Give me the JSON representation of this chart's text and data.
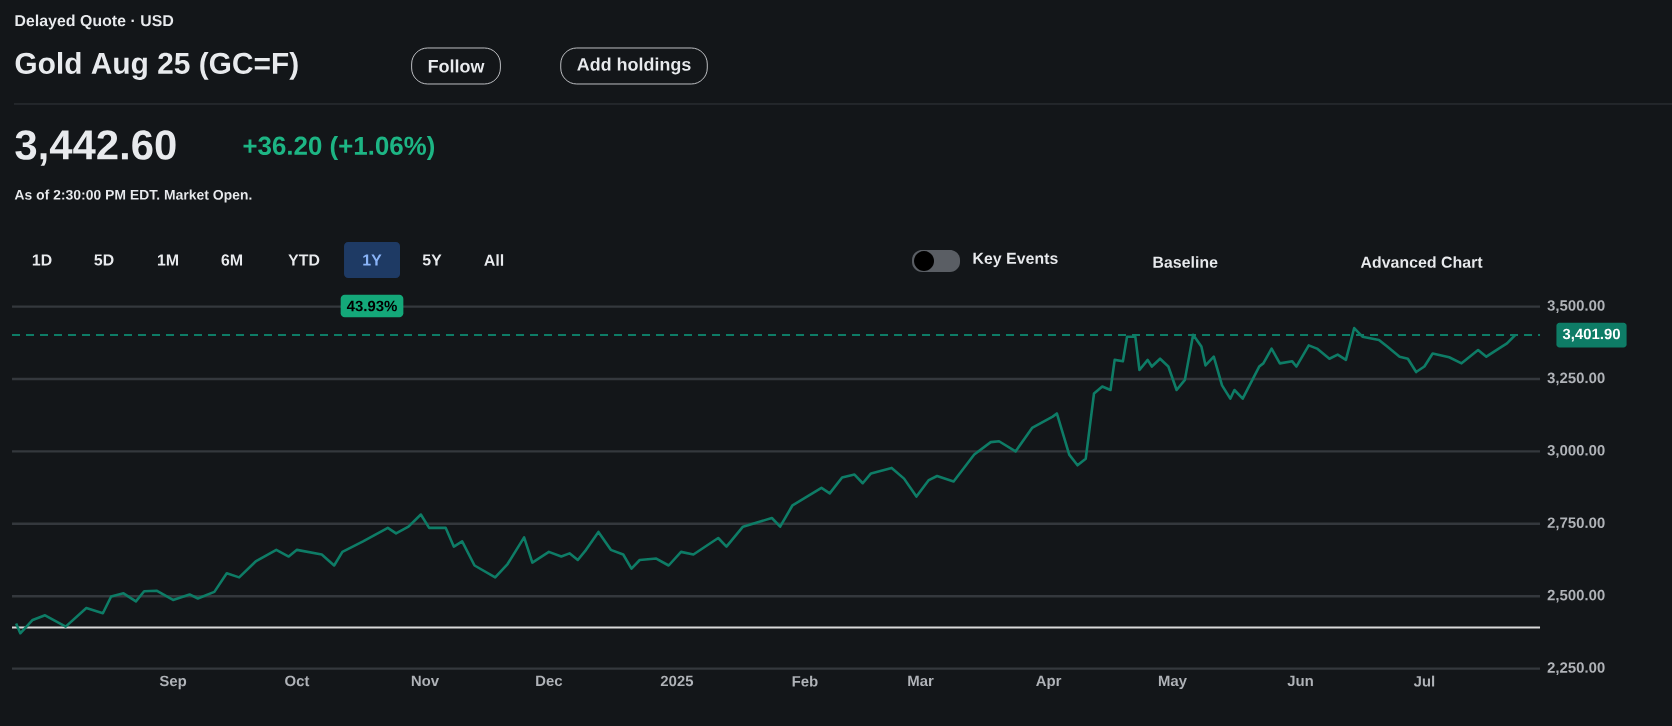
{
  "chart_data": {
    "type": "line",
    "title": "Gold Aug 25 (GC=F)",
    "subtitle": "As of 2:30:00 PM EDT. Market Open.",
    "annotations": [
      "Delayed Quote · USD",
      "Follow",
      "Add holdings",
      "3,442.60",
      "+36.20 (+1.06%)",
      "1D",
      "5D",
      "1M",
      "6M",
      "YTD",
      "1Y",
      "5Y",
      "All",
      "43.93%",
      "Key Events",
      "Baseline",
      "Advanced Chart"
    ],
    "x": [
      "2024-07-25",
      "2024-07-26",
      "2024-07-29",
      "2024-08-01",
      "2024-08-06",
      "2024-08-11",
      "2024-08-15",
      "2024-08-17",
      "2024-08-20",
      "2024-08-23",
      "2024-08-25",
      "2024-08-28",
      "2024-09-01",
      "2024-09-05",
      "2024-09-07",
      "2024-09-11",
      "2024-09-14",
      "2024-09-17",
      "2024-09-21",
      "2024-09-26",
      "2024-09-29",
      "2024-10-01",
      "2024-10-07",
      "2024-10-10",
      "2024-10-12",
      "2024-10-17",
      "2024-10-23",
      "2024-10-25",
      "2024-10-28",
      "2024-10-31",
      "2024-11-02",
      "2024-11-06",
      "2024-11-08",
      "2024-11-10",
      "2024-11-13",
      "2024-11-18",
      "2024-11-21",
      "2024-11-25",
      "2024-11-27",
      "2024-12-01",
      "2024-12-04",
      "2024-12-06",
      "2024-12-08",
      "2024-12-10",
      "2024-12-13",
      "2024-12-16",
      "2024-12-19",
      "2024-12-21",
      "2024-12-23",
      "2024-12-27",
      "2024-12-30",
      "2025-01-02",
      "2025-01-05",
      "2025-01-11",
      "2025-01-13",
      "2025-01-17",
      "2025-01-24",
      "2025-01-26",
      "2025-01-29",
      "2025-02-05",
      "2025-02-07",
      "2025-02-10",
      "2025-02-13",
      "2025-02-15",
      "2025-02-17",
      "2025-02-22",
      "2025-02-25",
      "2025-02-28",
      "2025-03-03",
      "2025-03-05",
      "2025-03-09",
      "2025-03-14",
      "2025-03-18",
      "2025-03-20",
      "2025-03-24",
      "2025-03-28",
      "2025-04-02",
      "2025-04-03",
      "2025-04-06",
      "2025-04-08",
      "2025-04-10",
      "2025-04-12",
      "2025-04-14",
      "2025-04-16",
      "2025-04-17",
      "2025-04-19",
      "2025-04-20",
      "2025-04-22",
      "2025-04-23",
      "2025-04-25",
      "2025-04-26",
      "2025-04-28",
      "2025-04-30",
      "2025-05-02",
      "2025-05-04",
      "2025-05-06",
      "2025-05-08",
      "2025-05-09",
      "2025-05-11",
      "2025-05-13",
      "2025-05-15",
      "2025-05-16",
      "2025-05-18",
      "2025-05-22",
      "2025-05-23",
      "2025-05-25",
      "2025-05-27",
      "2025-05-30",
      "2025-05-31",
      "2025-06-03",
      "2025-06-05",
      "2025-06-08",
      "2025-06-10",
      "2025-06-12",
      "2025-06-14",
      "2025-06-16",
      "2025-06-20",
      "2025-06-22",
      "2025-06-25",
      "2025-06-27",
      "2025-06-29",
      "2025-07-01",
      "2025-07-03",
      "2025-07-07",
      "2025-07-10",
      "2025-07-14",
      "2025-07-16",
      "2025-07-19",
      "2025-07-21",
      "2025-07-23"
    ],
    "series": [
      {
        "color": "#0e7c66",
        "values": [
          2406,
          2372,
          2418,
          2434,
          2395,
          2459,
          2441,
          2499,
          2510,
          2482,
          2517,
          2519,
          2487,
          2506,
          2492,
          2515,
          2579,
          2565,
          2620,
          2660,
          2637,
          2660,
          2644,
          2606,
          2653,
          2689,
          2736,
          2717,
          2740,
          2782,
          2736,
          2736,
          2671,
          2689,
          2606,
          2565,
          2611,
          2703,
          2616,
          2653,
          2637,
          2648,
          2625,
          2660,
          2722,
          2660,
          2644,
          2595,
          2625,
          2630,
          2606,
          2653,
          2644,
          2701,
          2671,
          2740,
          2770,
          2740,
          2814,
          2874,
          2855,
          2910,
          2920,
          2890,
          2924,
          2943,
          2906,
          2844,
          2901,
          2915,
          2896,
          2989,
          3032,
          3035,
          3000,
          3081,
          3120,
          3131,
          2989,
          2952,
          2975,
          3200,
          3224,
          3212,
          3316,
          3311,
          3396,
          3396,
          3281,
          3316,
          3293,
          3320,
          3293,
          3212,
          3247,
          3403,
          3362,
          3297,
          3327,
          3228,
          3182,
          3212,
          3182,
          3293,
          3304,
          3355,
          3304,
          3311,
          3293,
          3366,
          3355,
          3320,
          3334,
          3316,
          3426,
          3396,
          3385,
          3362,
          3327,
          3320,
          3274,
          3293,
          3338,
          3325,
          3304,
          3350,
          3327,
          3355,
          3373,
          3402
        ]
      }
    ],
    "xlim": [
      "2024-07-24",
      "2025-07-29"
    ],
    "xticks": [
      {
        "value": "2024-09-01",
        "label": "Sep"
      },
      {
        "value": "2024-10-01",
        "label": "Oct"
      },
      {
        "value": "2024-11-01",
        "label": "Nov"
      },
      {
        "value": "2024-12-01",
        "label": "Dec"
      },
      {
        "value": "2025-01-01",
        "label": "2025"
      },
      {
        "value": "2025-02-01",
        "label": "Feb"
      },
      {
        "value": "2025-03-01",
        "label": "Mar"
      },
      {
        "value": "2025-04-01",
        "label": "Apr"
      },
      {
        "value": "2025-05-01",
        "label": "May"
      },
      {
        "value": "2025-06-01",
        "label": "Jun"
      },
      {
        "value": "2025-07-01",
        "label": "Jul"
      }
    ],
    "ylim": [
      2250,
      3500
    ],
    "yticks": [
      {
        "value": 2250,
        "label": "2,250.00"
      },
      {
        "value": 2500,
        "label": "2,500.00"
      },
      {
        "value": 2750,
        "label": "2,750.00"
      },
      {
        "value": 3000,
        "label": "3,000.00"
      },
      {
        "value": 3250,
        "label": "3,250.00"
      },
      {
        "value": 3500,
        "label": "3,500.00"
      }
    ],
    "ref_lines": [
      {
        "axis": "y",
        "value": 3401.9,
        "label": "3,401.90",
        "color": "#0e7c66",
        "line_style": "dashed"
      },
      {
        "axis": "y",
        "value": 2392,
        "color": "#d9d9d9",
        "line_style": "solid"
      }
    ],
    "grid": "y"
  }
}
